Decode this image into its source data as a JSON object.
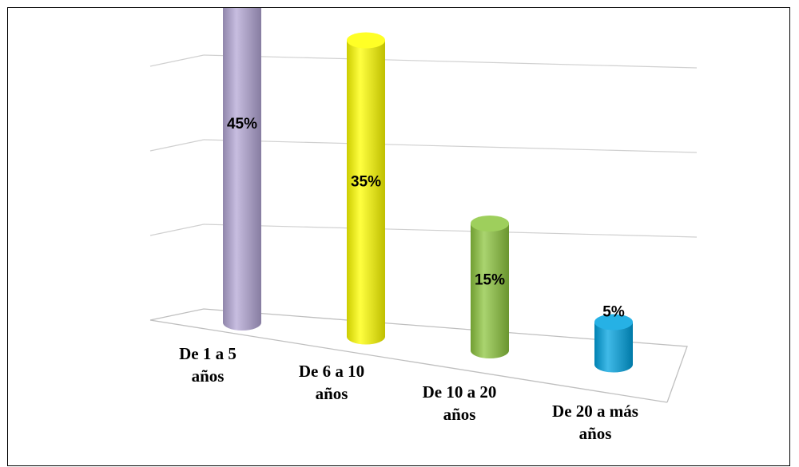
{
  "chart_data": {
    "type": "bar",
    "categories": [
      "De 1 a 5 años",
      "De 6 a 10 años",
      "De 10 a 20 años",
      "De 20 a más años"
    ],
    "category_lines": [
      [
        "De 1 a 5",
        "años"
      ],
      [
        "De 6 a 10",
        "años"
      ],
      [
        "De 10 a 20",
        "años"
      ],
      [
        "De 20 a más",
        "años"
      ]
    ],
    "values": [
      45,
      35,
      15,
      5
    ],
    "data_labels": [
      "45%",
      "35%",
      "15%",
      "5%"
    ],
    "unit": "%",
    "ylim": [
      0,
      50
    ],
    "grid": true,
    "legend": "none",
    "style": "3d-cylinder",
    "colors": [
      "#B4A7D6",
      "#FFFF00",
      "#8DC63F",
      "#00A3E0"
    ]
  }
}
